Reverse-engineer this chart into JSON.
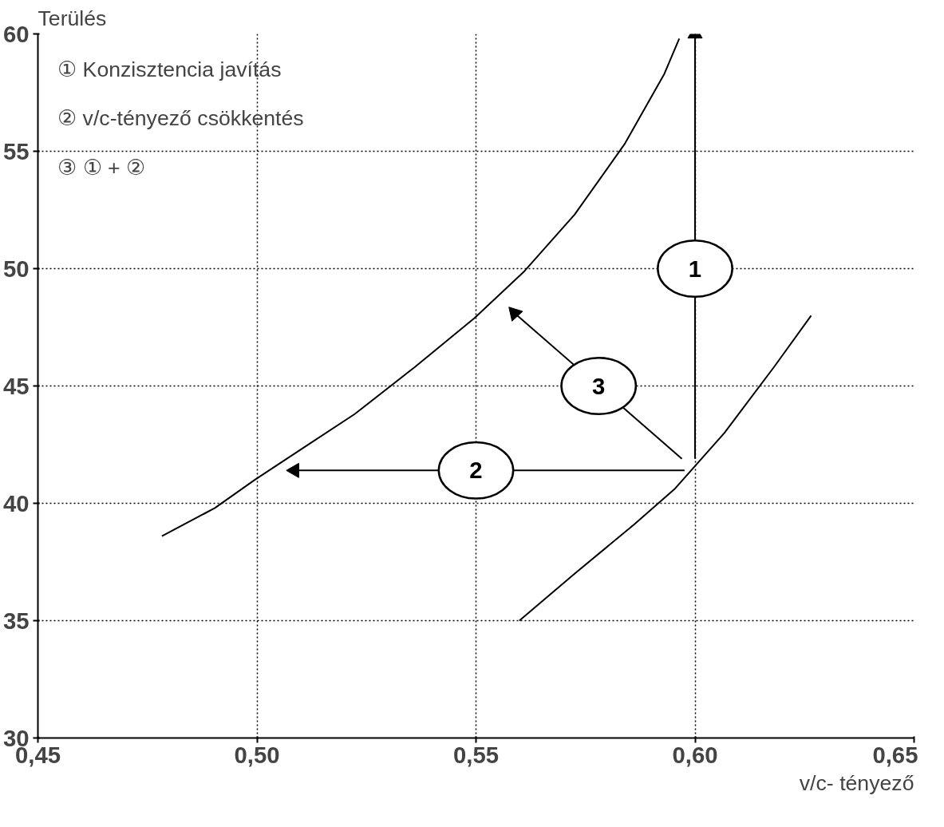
{
  "chart_data": {
    "type": "line",
    "xlabel": "v/c- tényező",
    "ylabel": "Terülés",
    "xlim": [
      0.45,
      0.65
    ],
    "ylim": [
      30,
      60
    ],
    "xticks": [
      {
        "value": 0.45,
        "label": "0,45"
      },
      {
        "value": 0.5,
        "label": "0,50"
      },
      {
        "value": 0.55,
        "label": "0,55"
      },
      {
        "value": 0.6,
        "label": "0,60"
      },
      {
        "value": 0.65,
        "label": "0,65"
      }
    ],
    "yticks": [
      30,
      35,
      40,
      45,
      50,
      55,
      60
    ],
    "grid": true,
    "line_style": "solid",
    "marker": "none",
    "series": [
      {
        "color": "#000000",
        "x": [
          0.4783,
          0.4904,
          0.4995,
          0.5109,
          0.5223,
          0.536,
          0.5497,
          0.5611,
          0.5725,
          0.5839,
          0.593,
          0.5964
        ],
        "values": [
          38.6,
          39.8,
          41.0,
          42.4,
          43.8,
          45.8,
          47.9,
          49.9,
          52.3,
          55.3,
          58.3,
          59.8
        ]
      },
      {
        "color": "#000000",
        "x": [
          0.5599,
          0.5725,
          0.5861,
          0.5953,
          0.6067,
          0.618,
          0.6265
        ],
        "values": [
          35.0,
          37.0,
          39.1,
          40.6,
          43.0,
          45.8,
          48.0
        ]
      },
      {
        "color": "#000000",
        "marker": "triangle",
        "x": [
          0.6,
          0.6
        ],
        "values": [
          41.9,
          60
        ]
      },
      {
        "color": "#000000",
        "marker": "triangle",
        "x": [
          0.5976,
          0.5086
        ],
        "values": [
          41.4,
          41.4
        ]
      },
      {
        "color": "#000000",
        "marker": "triangle",
        "x": [
          0.597,
          0.5588
        ],
        "values": [
          41.9,
          48.1
        ]
      }
    ],
    "annotations": [
      "① Konzisztencia javítás",
      "② v/c-tényező csökkentés",
      "③ ① + ②",
      {
        "text": "1",
        "x": 0.6,
        "y": 50
      },
      {
        "text": "2",
        "x": 0.55,
        "y": 41.4
      },
      {
        "text": "3",
        "x": 0.578,
        "y": 45
      }
    ]
  }
}
